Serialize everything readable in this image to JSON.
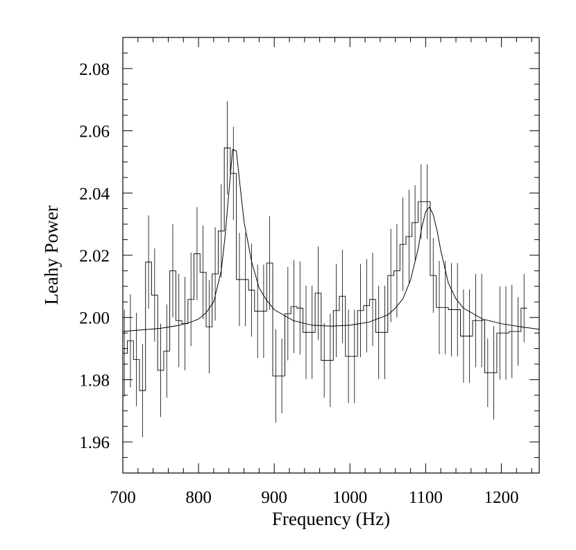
{
  "chart_data": {
    "type": "line",
    "xlabel": "Frequency (Hz)",
    "ylabel": "Leahy Power",
    "xlim": [
      700,
      1250
    ],
    "ylim": [
      1.95,
      2.09
    ],
    "x_ticks": [
      700,
      800,
      900,
      1000,
      1100,
      1200
    ],
    "x_tick_labels": [
      "700",
      "800",
      "900",
      "1000",
      "1100",
      "1200"
    ],
    "y_ticks": [
      1.96,
      1.98,
      2.0,
      2.02,
      2.04,
      2.06,
      2.08
    ],
    "y_tick_labels": [
      "1.96",
      "1.98",
      "2.00",
      "2.02",
      "2.04",
      "2.06",
      "2.08"
    ],
    "grid": false,
    "histogram": {
      "bin_width": 8,
      "bin_centers": [
        702,
        710,
        718,
        726,
        734,
        742,
        750,
        758,
        766,
        774,
        782,
        790,
        798,
        806,
        814,
        822,
        830,
        838,
        846,
        854,
        862,
        870,
        878,
        886,
        894,
        902,
        910,
        918,
        926,
        934,
        942,
        950,
        958,
        966,
        974,
        982,
        990,
        998,
        1006,
        1014,
        1022,
        1030,
        1038,
        1046,
        1054,
        1062,
        1070,
        1078,
        1086,
        1094,
        1102,
        1110,
        1118,
        1126,
        1134,
        1142,
        1150,
        1158,
        1166,
        1174,
        1182,
        1190,
        1198,
        1206,
        1214,
        1222,
        1230,
        1238,
        1246
      ],
      "values": [
        1.9885,
        1.9925,
        1.9865,
        1.9765,
        2.0178,
        2.0072,
        1.983,
        1.9892,
        2.015,
        1.999,
        1.998,
        2.0058,
        2.0205,
        2.0145,
        1.997,
        2.014,
        2.0278,
        2.0545,
        2.0463,
        2.0122,
        2.0122,
        2.0088,
        2.002,
        2.002,
        2.0175,
        1.9812,
        1.9812,
        2.0012,
        2.0035,
        2.003,
        1.9952,
        1.9952,
        2.0078,
        1.9862,
        1.9862,
        2.0022,
        2.0068,
        1.9875,
        1.9875,
        2.0022,
        2.0038,
        2.0058,
        1.9952,
        1.9952,
        2.0135,
        2.015,
        2.0235,
        2.026,
        2.0305,
        2.0372,
        2.0372,
        2.0135,
        2.0032,
        2.0032,
        2.0025,
        2.0025,
        1.994,
        1.994,
        1.999,
        1.999,
        1.9822,
        1.9822,
        1.995,
        1.995,
        1.9955,
        1.9955,
        2.003
      ],
      "errors": [
        0.014,
        0.015,
        0.015,
        0.015,
        0.015,
        0.015,
        0.015,
        0.015,
        0.015,
        0.015,
        0.015,
        0.015,
        0.015,
        0.015,
        0.015,
        0.015,
        0.015,
        0.015,
        0.015,
        0.015,
        0.015,
        0.015,
        0.015,
        0.015,
        0.015,
        0.015,
        0.012,
        0.015,
        0.015,
        0.015,
        0.015,
        0.015,
        0.015,
        0.012,
        0.015,
        0.015,
        0.015,
        0.015,
        0.015,
        0.015,
        0.015,
        0.015,
        0.015,
        0.015,
        0.015,
        0.015,
        0.015,
        0.015,
        0.012,
        0.012,
        0.012,
        0.012,
        0.015,
        0.015,
        0.015,
        0.015,
        0.015,
        0.015,
        0.015,
        0.015,
        0.011,
        0.015,
        0.015,
        0.015,
        0.015,
        0.011,
        0.011
      ]
    },
    "fit": {
      "x": [
        700,
        725,
        750,
        775,
        790,
        800,
        810,
        820,
        830,
        835,
        840,
        845,
        850,
        855,
        860,
        870,
        880,
        890,
        900,
        925,
        950,
        975,
        1000,
        1025,
        1050,
        1060,
        1070,
        1080,
        1090,
        1095,
        1100,
        1105,
        1110,
        1115,
        1120,
        1130,
        1140,
        1150,
        1175,
        1200,
        1225,
        1250
      ],
      "y": [
        1.9955,
        1.996,
        1.9965,
        1.9975,
        1.9985,
        1.9995,
        2.0015,
        2.005,
        2.015,
        2.026,
        2.04,
        2.054,
        2.0535,
        2.042,
        2.031,
        2.018,
        2.0095,
        2.0055,
        2.0025,
        1.999,
        1.9975,
        1.9972,
        1.9975,
        1.9985,
        2.0008,
        2.003,
        2.006,
        2.012,
        2.022,
        2.029,
        2.034,
        2.0355,
        2.033,
        2.028,
        2.0215,
        2.011,
        2.006,
        2.003,
        1.9995,
        1.998,
        1.997,
        1.9962
      ]
    }
  }
}
